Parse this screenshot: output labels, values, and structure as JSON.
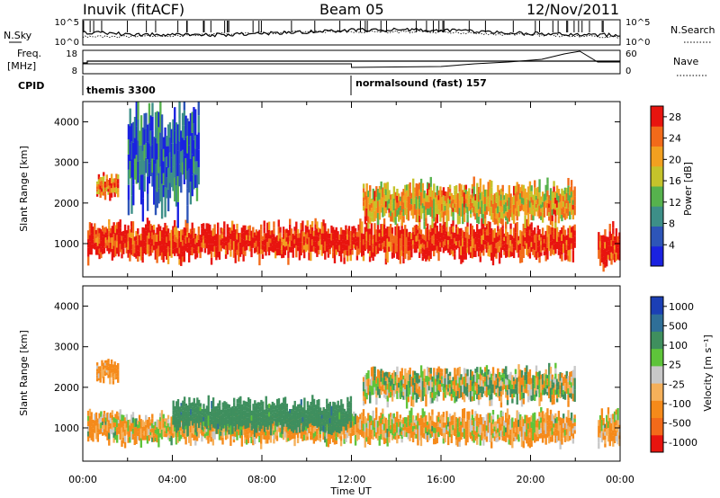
{
  "header": {
    "station": "Inuvik (fitACF)",
    "beam": "Beam 05",
    "date": "12/Nov/2011"
  },
  "top_panels": {
    "nsky_label": "N.Sky",
    "nsky_ticks": [
      "10^5",
      "10^0"
    ],
    "nsearch_label": "N.Search",
    "nsearch_ticks": [
      "10^5",
      "10^0"
    ],
    "freq_label": "Freq.",
    "freq_unit": "[MHz]",
    "freq_ticks": [
      "18",
      "8"
    ],
    "nave_label": "Nave",
    "nave_ticks": [
      "60",
      "0"
    ],
    "cpid_label": "CPID",
    "cpid_modes": [
      "themis 3300",
      "normalsound (fast) 157"
    ]
  },
  "power_panel": {
    "ylabel": "Slant Range [km]",
    "colorbar_label": "Power [dB]"
  },
  "velocity_panel": {
    "ylabel": "Slant Range [km]",
    "colorbar_label": "Velocity  [m s⁻¹]"
  },
  "xlabel": "Time UT",
  "chart_data": [
    {
      "type": "heatmap",
      "title": "Power",
      "xlabel": "Time UT",
      "ylabel": "Slant Range [km]",
      "x_ticks": [
        "00:00",
        "04:00",
        "08:00",
        "12:00",
        "16:00",
        "20:00",
        "00:00"
      ],
      "xlim_hours": [
        0,
        24
      ],
      "y_ticks": [
        1000,
        2000,
        3000,
        4000
      ],
      "ylim": [
        180,
        4500
      ],
      "colorbar": {
        "label": "Power [dB]",
        "ticks": [
          4,
          8,
          12,
          16,
          20,
          24,
          28
        ],
        "range": [
          0,
          30
        ],
        "colors": [
          "#1a22e0",
          "#2d55b8",
          "#3d8f88",
          "#56b24d",
          "#c5c32b",
          "#f2a020",
          "#f26a1a",
          "#e8140f"
        ]
      },
      "regions": [
        {
          "t": [
            0.2,
            22.0
          ],
          "r": [
            600,
            1500
          ],
          "level": 28,
          "desc": "main scatter band"
        },
        {
          "t": [
            0.6,
            1.6
          ],
          "r": [
            2100,
            2700
          ],
          "level": 22
        },
        {
          "t": [
            12.5,
            22.0
          ],
          "r": [
            1500,
            2500
          ],
          "level": 20
        },
        {
          "t": [
            23.0,
            24.0
          ],
          "r": [
            400,
            1400
          ],
          "level": 28
        },
        {
          "t": [
            2.0,
            5.2
          ],
          "r": [
            1800,
            4400
          ],
          "level": 6
        }
      ]
    },
    {
      "type": "heatmap",
      "title": "Velocity",
      "xlabel": "Time UT",
      "ylabel": "Slant Range [km]",
      "x_ticks": [
        "00:00",
        "04:00",
        "08:00",
        "12:00",
        "16:00",
        "20:00",
        "00:00"
      ],
      "xlim_hours": [
        0,
        24
      ],
      "y_ticks": [
        1000,
        2000,
        3000,
        4000
      ],
      "ylim": [
        180,
        4500
      ],
      "colorbar": {
        "label": "Velocity [m s-1]",
        "ticks": [
          1000,
          500,
          100,
          25,
          -25,
          -100,
          -500,
          -1000
        ],
        "colors": [
          "#1b3fb5",
          "#2f6f98",
          "#3f8f5e",
          "#5ec43a",
          "#c8c8c8",
          "#f5b05a",
          "#f58a1a",
          "#f36a1a",
          "#e8140f"
        ]
      },
      "regions": [
        {
          "t": [
            0.2,
            22.0
          ],
          "r": [
            600,
            1400
          ],
          "level": -100,
          "desc": "main band, mostly away"
        },
        {
          "t": [
            4.0,
            12.0
          ],
          "r": [
            900,
            1700
          ],
          "level": 300
        },
        {
          "t": [
            12.5,
            22.0
          ],
          "r": [
            1600,
            2500
          ],
          "level": 0
        },
        {
          "t": [
            0.6,
            1.6
          ],
          "r": [
            2100,
            2700
          ],
          "level": -200
        },
        {
          "t": [
            23.0,
            24.0
          ],
          "r": [
            500,
            1400
          ],
          "level": -100
        }
      ]
    }
  ]
}
